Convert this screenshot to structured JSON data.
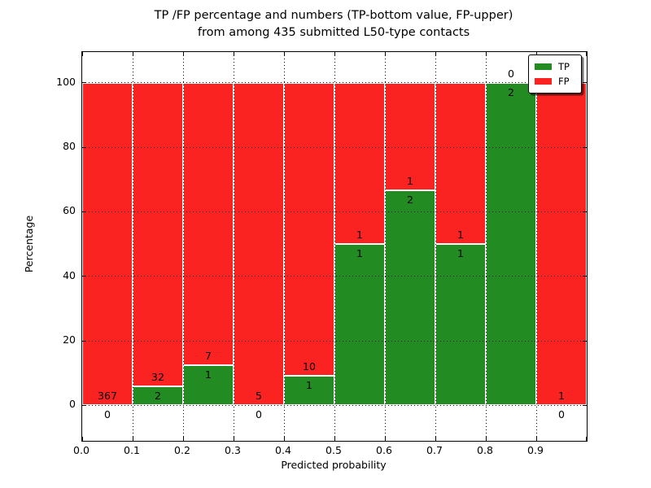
{
  "figure": {
    "title_line1": "TP /FP percentage and numbers (TP-bottom value, FP-upper)",
    "title_line2": "from among 435 submitted L50-type contacts",
    "xlabel": "Predicted probability",
    "ylabel": "Percentage"
  },
  "chart_data": {
    "type": "bar",
    "subtype": "stacked-percentage-histogram",
    "title": "TP /FP percentage and numbers (TP-bottom value, FP-upper)\nfrom among 435 submitted L50-type contacts",
    "xlabel": "Predicted probability",
    "ylabel": "Percentage",
    "total_contacts": 435,
    "bin_edges": [
      0.0,
      0.1,
      0.2,
      0.3,
      0.4,
      0.5,
      0.6,
      0.7,
      0.8,
      0.9,
      1.0
    ],
    "x_tick_labels": [
      "0.0",
      "0.1",
      "0.2",
      "0.3",
      "0.4",
      "0.5",
      "0.6",
      "0.7",
      "0.8",
      "0.9"
    ],
    "y_ticks": [
      0,
      20,
      40,
      60,
      80,
      100
    ],
    "xlim": [
      0.0,
      1.0
    ],
    "ylim": [
      -11,
      109.5
    ],
    "grid": "dotted",
    "series": [
      {
        "name": "TP",
        "color": "#228b22",
        "counts": [
          0,
          2,
          1,
          0,
          1,
          1,
          2,
          1,
          2,
          0
        ]
      },
      {
        "name": "FP",
        "color": "#fb2222",
        "counts": [
          367,
          32,
          7,
          5,
          10,
          1,
          1,
          1,
          0,
          1
        ]
      }
    ],
    "tp_percent": [
      0.0,
      5.88,
      12.5,
      0.0,
      9.09,
      50.0,
      66.67,
      50.0,
      100.0,
      0.0
    ],
    "legend": {
      "position": "upper right",
      "entries": [
        {
          "label": "TP",
          "color": "#228b22"
        },
        {
          "label": "FP",
          "color": "#fb2222"
        }
      ]
    }
  }
}
